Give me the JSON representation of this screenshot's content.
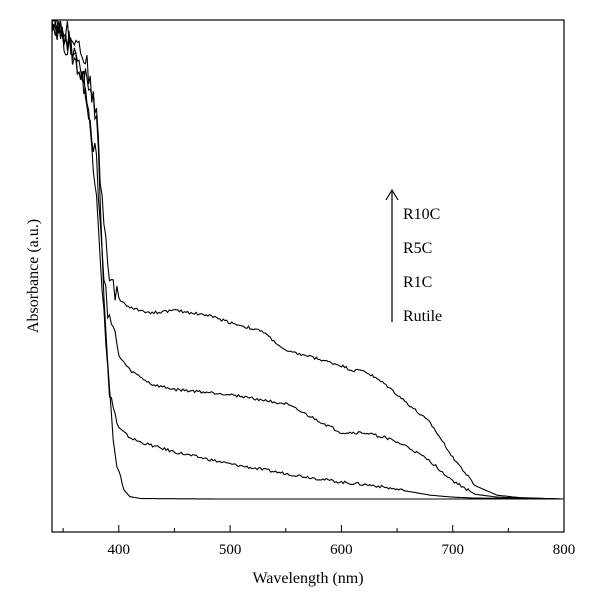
{
  "chart_data": {
    "type": "line",
    "title": "",
    "xlabel": "Wavelength (nm)",
    "ylabel": "Absorbance (a.u.)",
    "xlim": [
      340,
      800
    ],
    "ylim": [
      0,
      1.0
    ],
    "x_ticks": [
      400,
      500,
      600,
      700,
      800
    ],
    "y_ticks_labeled": false,
    "grid": false,
    "legend": {
      "placement": "right, with upward arrow",
      "order_top_to_bottom": [
        "R10C",
        "R5C",
        "R1C",
        "Rutile"
      ]
    },
    "series": [
      {
        "name": "Rutile",
        "color": "#000000",
        "points": [
          [
            340,
            1.02
          ],
          [
            360,
            0.93
          ],
          [
            370,
            0.86
          ],
          [
            380,
            0.7
          ],
          [
            385,
            0.5
          ],
          [
            390,
            0.28
          ],
          [
            395,
            0.13
          ],
          [
            400,
            0.06
          ],
          [
            405,
            0.02
          ],
          [
            410,
            0.007
          ],
          [
            420,
            0.003
          ],
          [
            500,
            0.002
          ],
          [
            600,
            0.002
          ],
          [
            700,
            0.002
          ],
          [
            800,
            0.002
          ]
        ]
      },
      {
        "name": "R1C",
        "color": "#000000",
        "points": [
          [
            340,
            1.0
          ],
          [
            360,
            0.92
          ],
          [
            370,
            0.86
          ],
          [
            380,
            0.65
          ],
          [
            385,
            0.45
          ],
          [
            390,
            0.26
          ],
          [
            395,
            0.19
          ],
          [
            400,
            0.15
          ],
          [
            410,
            0.13
          ],
          [
            420,
            0.12
          ],
          [
            450,
            0.1
          ],
          [
            500,
            0.075
          ],
          [
            550,
            0.055
          ],
          [
            600,
            0.037
          ],
          [
            630,
            0.03
          ],
          [
            650,
            0.022
          ],
          [
            680,
            0.01
          ],
          [
            700,
            0.006
          ],
          [
            720,
            0.004
          ],
          [
            800,
            0.002
          ]
        ]
      },
      {
        "name": "R5C",
        "color": "#000000",
        "points": [
          [
            340,
            1.0
          ],
          [
            360,
            0.94
          ],
          [
            370,
            0.88
          ],
          [
            380,
            0.8
          ],
          [
            385,
            0.52
          ],
          [
            390,
            0.4
          ],
          [
            395,
            0.35
          ],
          [
            400,
            0.3
          ],
          [
            410,
            0.27
          ],
          [
            430,
            0.24
          ],
          [
            450,
            0.23
          ],
          [
            500,
            0.22
          ],
          [
            550,
            0.2
          ],
          [
            600,
            0.14
          ],
          [
            620,
            0.14
          ],
          [
            640,
            0.13
          ],
          [
            660,
            0.11
          ],
          [
            680,
            0.08
          ],
          [
            700,
            0.04
          ],
          [
            720,
            0.012
          ],
          [
            740,
            0.006
          ],
          [
            760,
            0.004
          ],
          [
            800,
            0.002
          ]
        ]
      },
      {
        "name": "R10C",
        "color": "#000000",
        "points": [
          [
            340,
            1.0
          ],
          [
            360,
            0.97
          ],
          [
            370,
            0.92
          ],
          [
            380,
            0.8
          ],
          [
            385,
            0.62
          ],
          [
            390,
            0.5
          ],
          [
            395,
            0.44
          ],
          [
            400,
            0.42
          ],
          [
            410,
            0.4
          ],
          [
            430,
            0.39
          ],
          [
            450,
            0.395
          ],
          [
            480,
            0.385
          ],
          [
            500,
            0.37
          ],
          [
            530,
            0.35
          ],
          [
            550,
            0.31
          ],
          [
            570,
            0.3
          ],
          [
            600,
            0.28
          ],
          [
            610,
            0.27
          ],
          [
            620,
            0.27
          ],
          [
            640,
            0.24
          ],
          [
            660,
            0.2
          ],
          [
            680,
            0.16
          ],
          [
            700,
            0.09
          ],
          [
            720,
            0.03
          ],
          [
            740,
            0.01
          ],
          [
            760,
            0.005
          ],
          [
            800,
            0.002
          ]
        ]
      }
    ]
  }
}
